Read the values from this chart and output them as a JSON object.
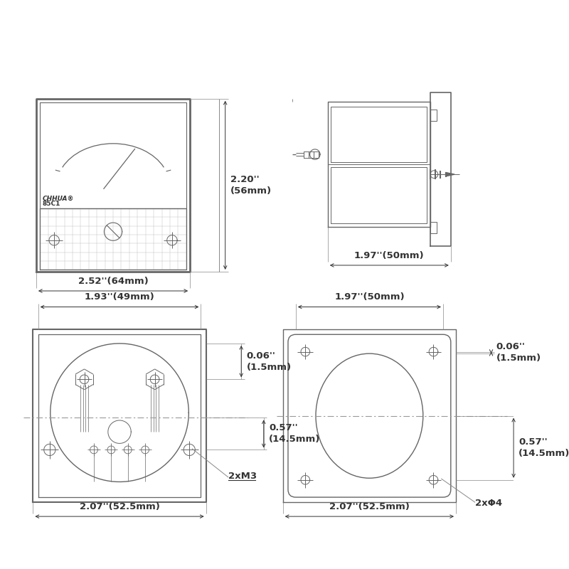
{
  "bg_color": "#ffffff",
  "lc": "#666666",
  "lc_dark": "#333333",
  "dim_fs": 9.5,
  "dim_front_width": "2.52''(64mm)",
  "dim_front_height": "2.20''\n(56mm)",
  "dim_side_width": "1.97''(50mm)",
  "dim_bl_top": "1.93''(49mm)",
  "dim_bl_bot": "2.07''(52.5mm)",
  "dim_br_top": "1.97''(50mm)",
  "dim_br_bot": "2.07''(52.5mm)",
  "dim_06": "0.06''\n(1.5mm)",
  "dim_057": "0.57''\n(14.5mm)",
  "label_2xM3": "2xM3",
  "label_2xPhi4": "2xΦ4",
  "label_chhua": "CHHUA®",
  "label_85c1": "85C1"
}
